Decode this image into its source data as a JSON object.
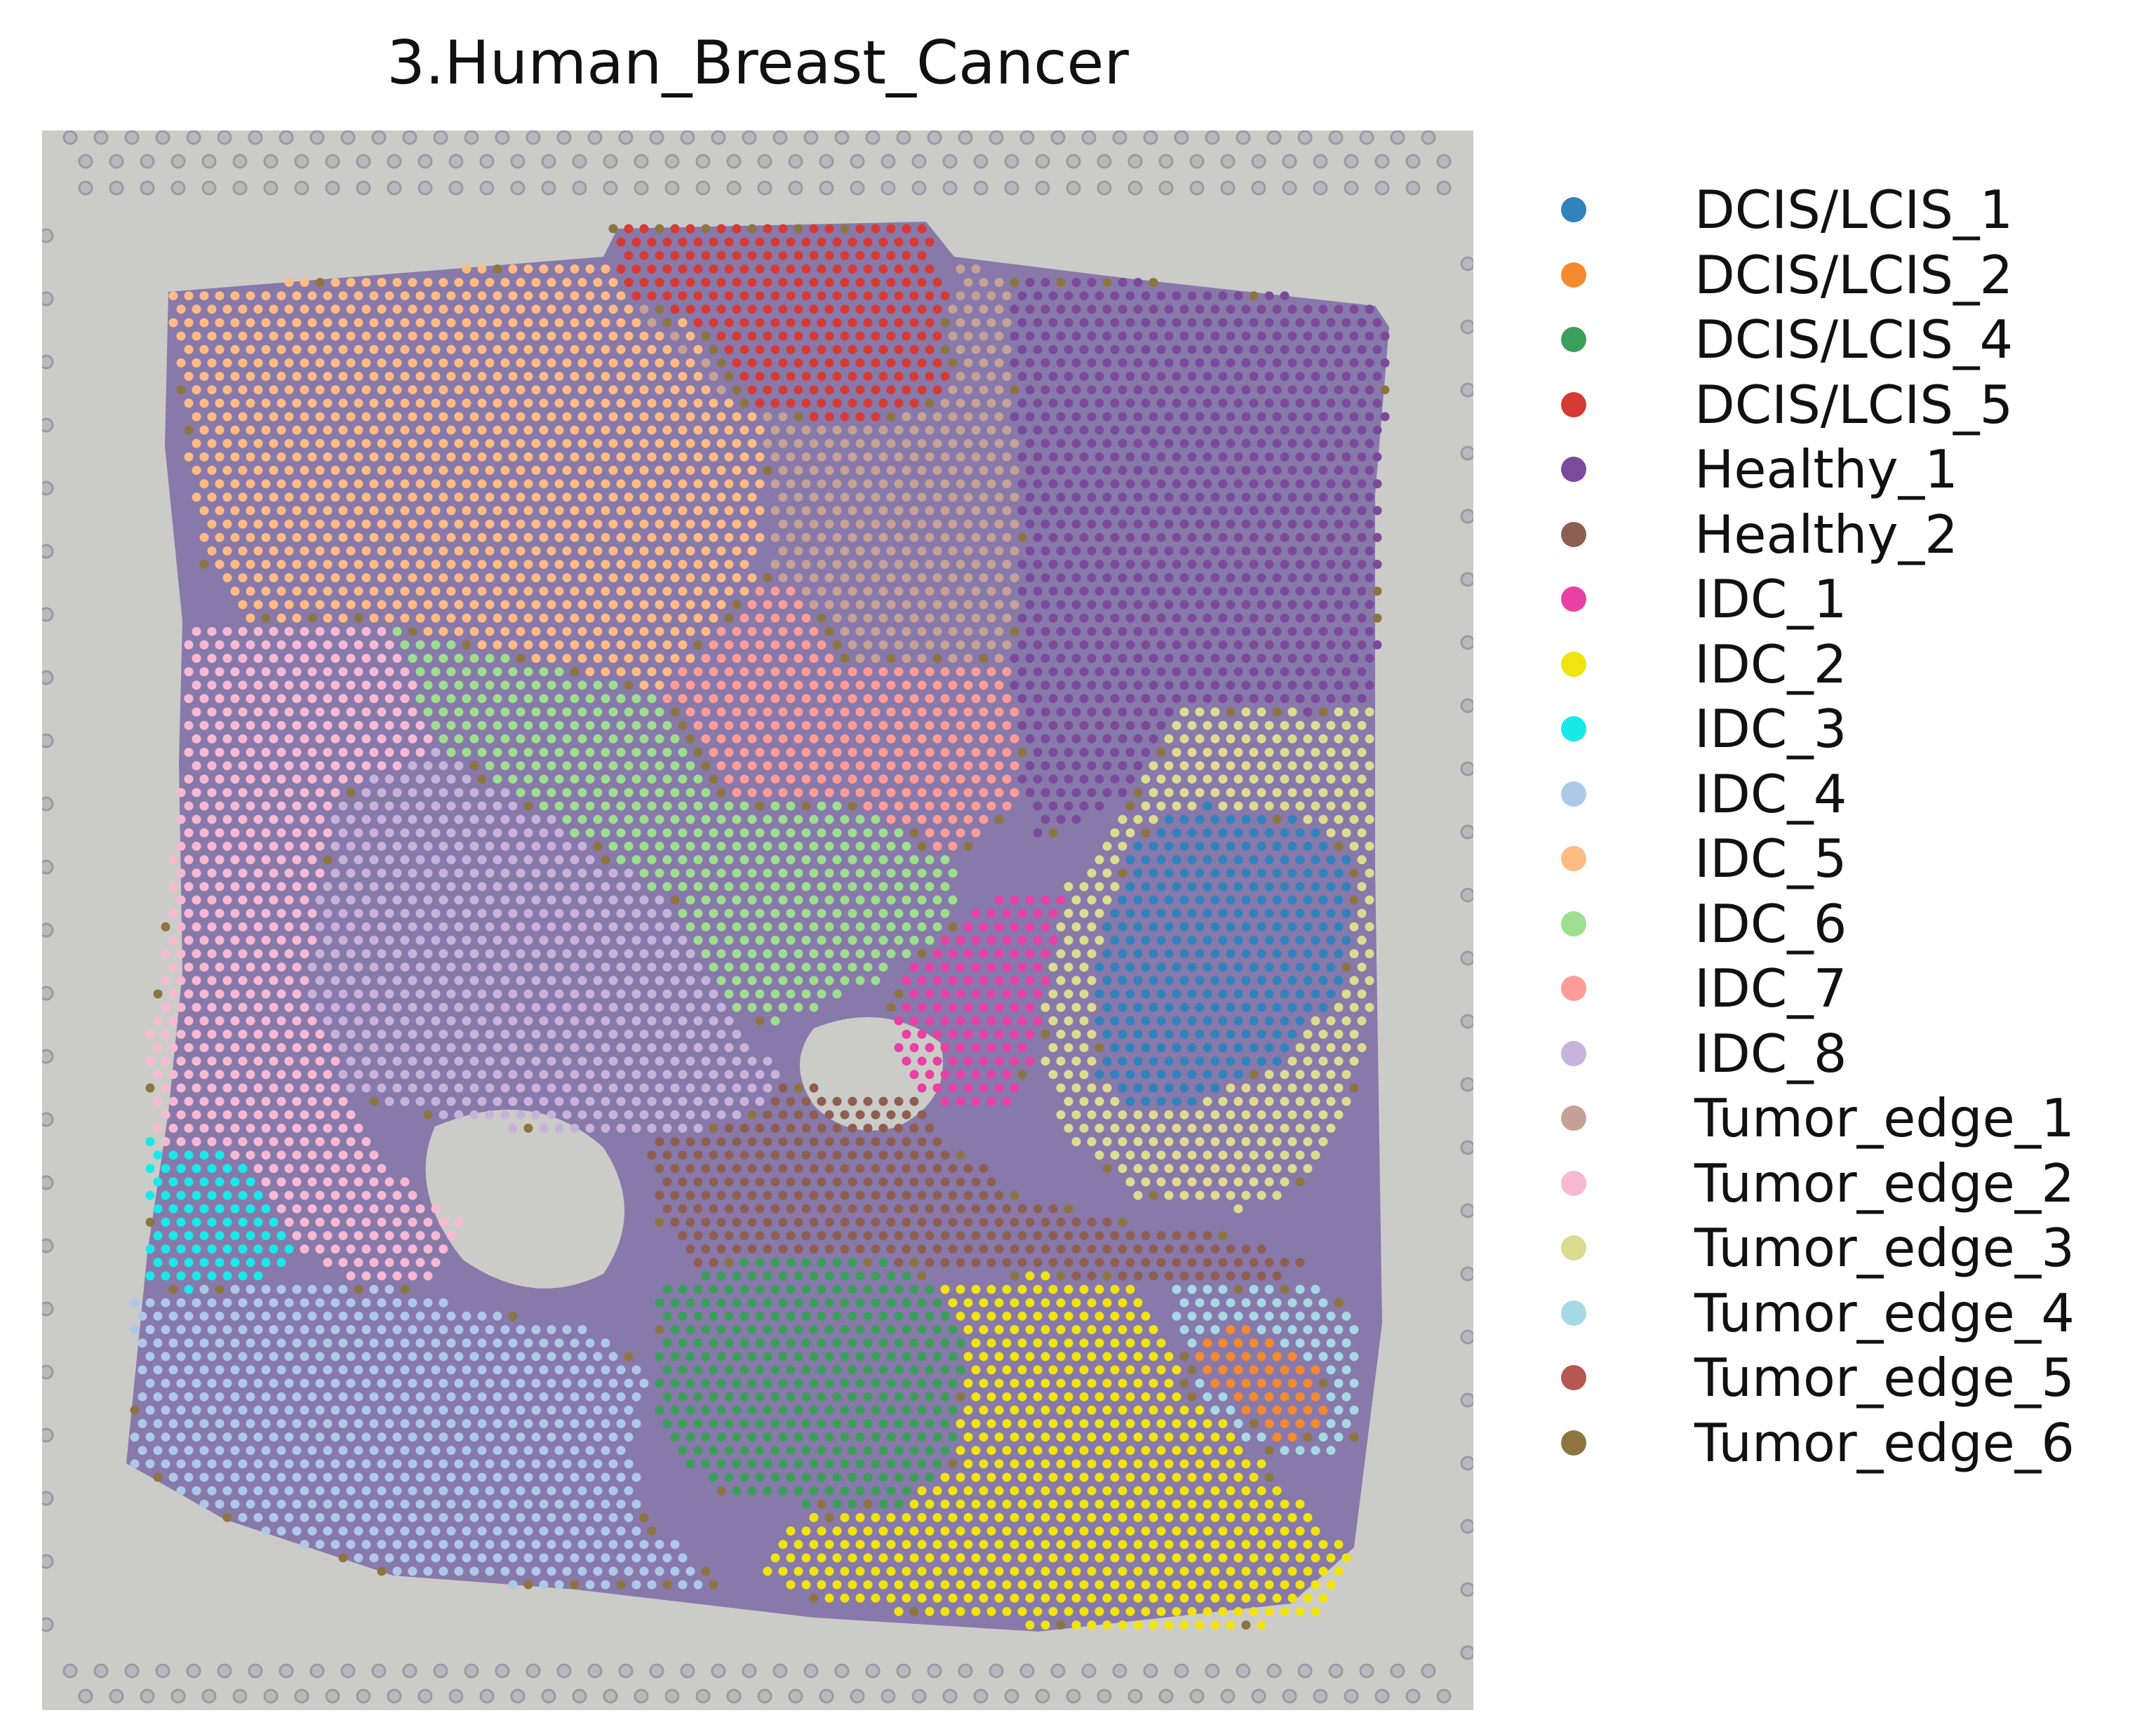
{
  "chart_data": {
    "type": "scatter",
    "title": "3.Human_Breast_Cancer",
    "xlabel": "",
    "ylabel": "",
    "grid": false,
    "axes_visible": false,
    "background": "H&E tissue image",
    "legend_position": "right",
    "point_size": "small",
    "categories": [
      {
        "name": "DCIS/LCIS_1",
        "color": "#3182bd"
      },
      {
        "name": "DCIS/LCIS_2",
        "color": "#f58a2d"
      },
      {
        "name": "DCIS/LCIS_4",
        "color": "#3b9e5a"
      },
      {
        "name": "DCIS/LCIS_5",
        "color": "#d63a35"
      },
      {
        "name": "Healthy_1",
        "color": "#7b4a9b"
      },
      {
        "name": "Healthy_2",
        "color": "#8f5e52"
      },
      {
        "name": "IDC_1",
        "color": "#e940a3"
      },
      {
        "name": "IDC_2",
        "color": "#f1e30e"
      },
      {
        "name": "IDC_3",
        "color": "#18eaea"
      },
      {
        "name": "IDC_4",
        "color": "#aec8e8"
      },
      {
        "name": "IDC_5",
        "color": "#ffbb84"
      },
      {
        "name": "IDC_6",
        "color": "#9ede8f"
      },
      {
        "name": "IDC_7",
        "color": "#ff9c98"
      },
      {
        "name": "IDC_8",
        "color": "#c6b3d9"
      },
      {
        "name": "Tumor_edge_1",
        "color": "#c6a196"
      },
      {
        "name": "Tumor_edge_2",
        "color": "#f7b9d2"
      },
      {
        "name": "Tumor_edge_3",
        "color": "#dcdc90"
      },
      {
        "name": "Tumor_edge_4",
        "color": "#a6d8e5"
      },
      {
        "name": "Tumor_edge_5",
        "color": "#b75752"
      },
      {
        "name": "Tumor_edge_6",
        "color": "#8c7541"
      }
    ]
  }
}
